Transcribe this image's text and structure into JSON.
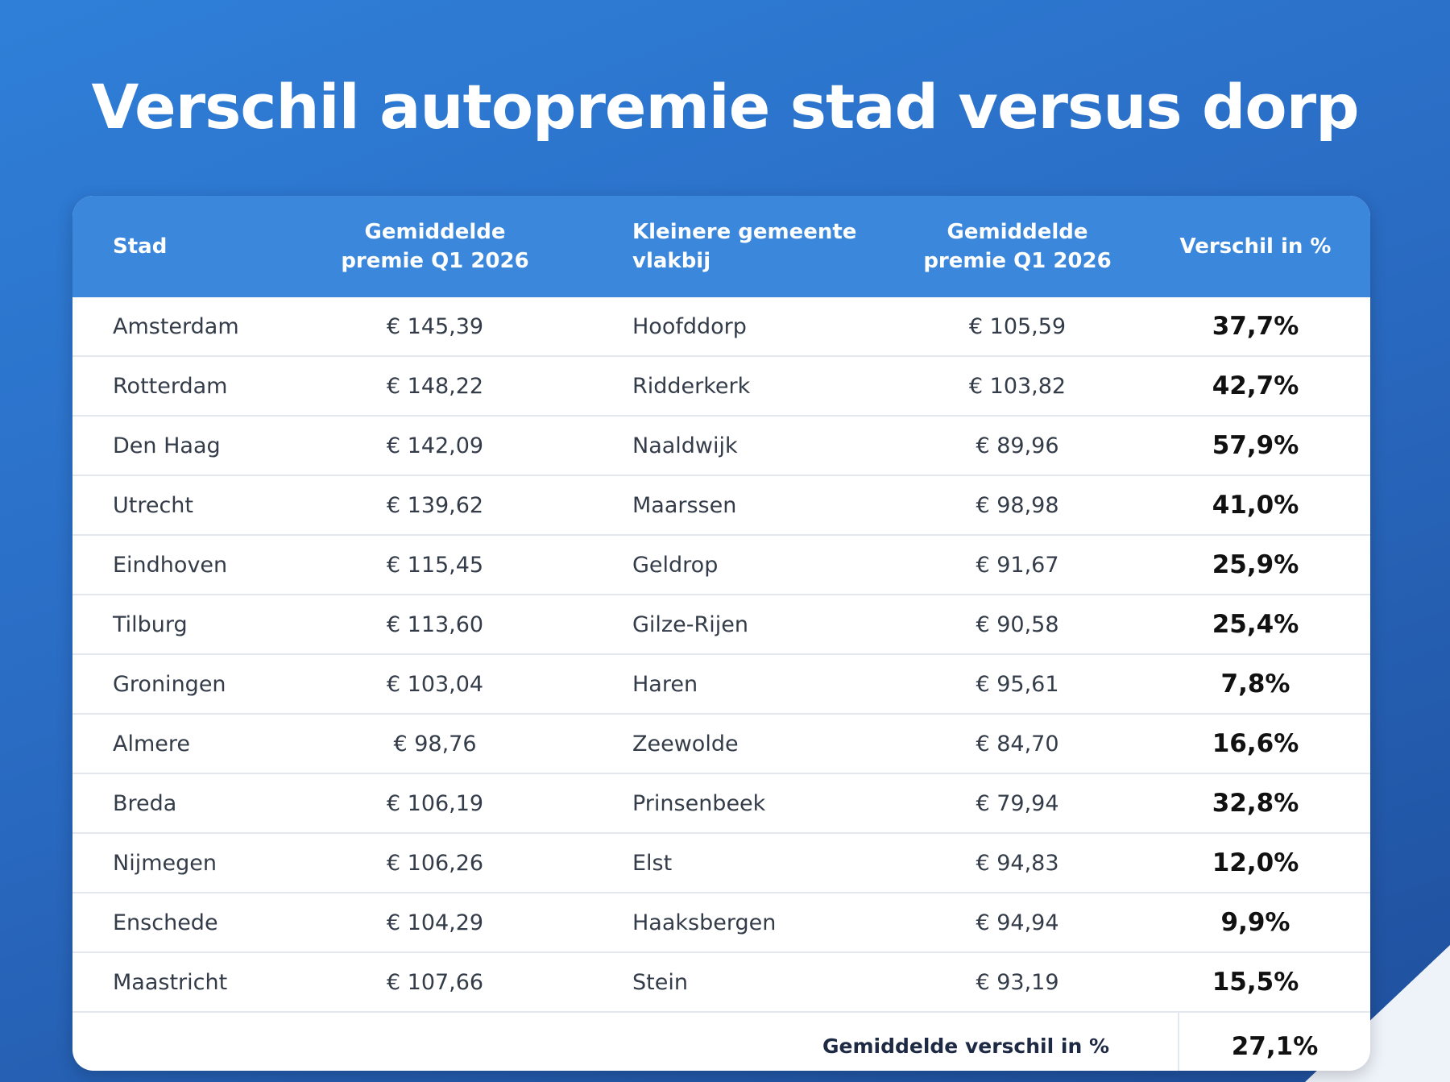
{
  "title": "Verschil autopremie stad versus dorp",
  "table": {
    "header": [
      "Stad",
      "Gemiddelde premie Q1 2026",
      "Kleinere gemeente vlakbij",
      "Gemiddelde premie Q1 2026",
      "Verschil in %"
    ],
    "rows": [
      [
        "Amsterdam",
        "€ 145,39",
        "Hoofddorp",
        "€ 105,59",
        "37,7%"
      ],
      [
        "Rotterdam",
        "€ 148,22",
        "Ridderkerk",
        "€ 103,82",
        "42,7%"
      ],
      [
        "Den Haag",
        "€ 142,09",
        "Naaldwijk",
        "€ 89,96",
        "57,9%"
      ],
      [
        "Utrecht",
        "€ 139,62",
        "Maarssen",
        "€ 98,98",
        "41,0%"
      ],
      [
        "Eindhoven",
        "€ 115,45",
        "Geldrop",
        "€ 91,67",
        "25,9%"
      ],
      [
        "Tilburg",
        "€ 113,60",
        "Gilze-Rijen",
        "€ 90,58",
        "25,4%"
      ],
      [
        "Groningen",
        "€ 103,04",
        "Haren",
        "€ 95,61",
        "7,8%"
      ],
      [
        "Almere",
        "€ 98,76",
        "Zeewolde",
        "€ 84,70",
        "16,6%"
      ],
      [
        "Breda",
        "€ 106,19",
        "Prinsenbeek",
        "€ 79,94",
        "32,8%"
      ],
      [
        "Nijmegen",
        "€ 106,26",
        "Elst",
        "€ 94,83",
        "12,0%"
      ],
      [
        "Enschede",
        "€ 104,29",
        "Haaksbergen",
        "€ 94,94",
        "9,9%"
      ],
      [
        "Maastricht",
        "€ 107,66",
        "Stein",
        "€ 93,19",
        "15,5%"
      ]
    ],
    "footer": {
      "label": "Gemiddelde verschil in %",
      "value": "27,1%"
    }
  }
}
